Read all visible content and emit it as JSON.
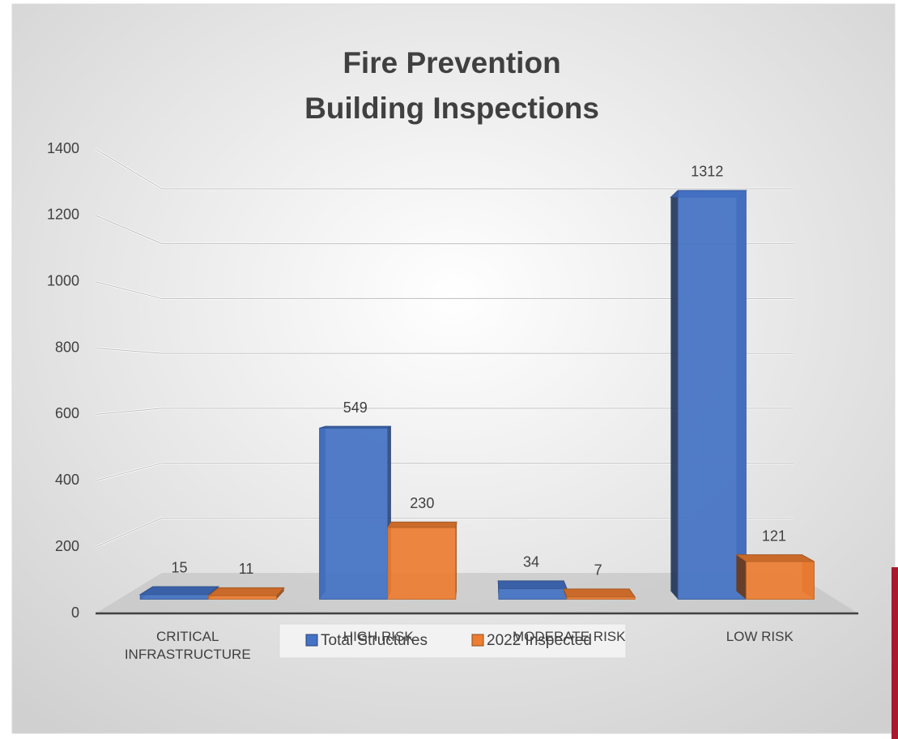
{
  "chart_data": {
    "type": "bar3d",
    "title": [
      "Fire Prevention",
      "Building Inspections"
    ],
    "categories": [
      "CRITICAL INFRASTRUCTURE",
      "HIGH RISK",
      "MODERATE RISK",
      "LOW RISK"
    ],
    "series": [
      {
        "name": "Total Structures",
        "color": "#4472c4",
        "values": [
          15,
          549,
          34,
          1312
        ]
      },
      {
        "name": "2022 Inspected",
        "color": "#ed7d31",
        "values": [
          11,
          230,
          7,
          121
        ]
      }
    ],
    "ylim": [
      0,
      1400
    ],
    "yticks": [
      0,
      200,
      400,
      600,
      800,
      1000,
      1200,
      1400
    ],
    "grid": true,
    "legend": "bottom"
  }
}
